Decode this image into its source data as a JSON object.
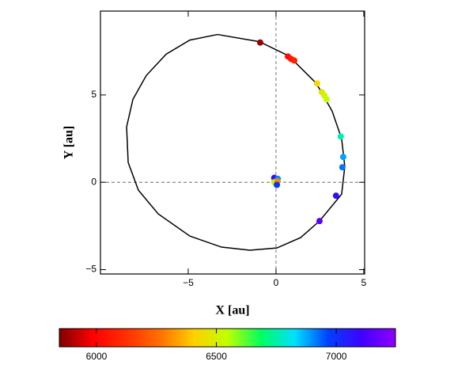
{
  "chart_data": {
    "type": "orbit",
    "x_label": "X [au]",
    "y_label": "Y [au]",
    "xlim": [
      -10.0,
      5.05
    ],
    "ylim": [
      -5.25,
      9.8
    ],
    "xticks": [
      {
        "value": -5,
        "label": "−5"
      },
      0,
      5
    ],
    "yticks": [
      {
        "value": -5,
        "label": "−5"
      },
      0,
      5
    ],
    "zero_lines": true,
    "orbit": {
      "color": "#000000",
      "x": [
        -3.33,
        -0.95,
        0.72,
        2.3,
        3.2,
        3.74,
        3.92,
        3.74,
        2.48,
        1.4,
        0.05,
        -1.49,
        -3.11,
        -4.91,
        -6.71,
        -7.84,
        -8.42,
        -8.51,
        -8.15,
        -7.39,
        -6.26,
        -4.91,
        -3.33
      ],
      "y": [
        8.46,
        8.05,
        7.24,
        5.66,
        4.07,
        2.49,
        0.9,
        -0.68,
        -2.22,
        -3.17,
        -3.76,
        -3.89,
        -3.71,
        -3.08,
        -1.81,
        -0.45,
        1.13,
        3.17,
        4.75,
        6.11,
        7.33,
        8.14,
        8.46
      ]
    },
    "points": {
      "x": [
        -0.9,
        0.68,
        0.86,
        1.04,
        2.34,
        2.61,
        2.75,
        2.88,
        3.69,
        3.83,
        3.78,
        3.42,
        2.48,
        -0.1,
        0.1,
        0.05,
        -0.1,
        0.08,
        0.05
      ],
      "y": [
        8.0,
        7.2,
        7.06,
        6.97,
        5.66,
        5.16,
        4.98,
        4.75,
        2.62,
        1.45,
        0.86,
        -0.77,
        -2.22,
        0.25,
        0.2,
        -0.1,
        0.0,
        0.05,
        -0.15
      ],
      "c": [
        5870,
        6030,
        6050,
        6080,
        6420,
        6470,
        6520,
        6540,
        6760,
        6880,
        6920,
        7080,
        7150,
        7100,
        6900,
        6500,
        6550,
        6300,
        7000
      ]
    },
    "clim": [
      5845,
      7247
    ],
    "cticks": [
      6000,
      6500,
      7000
    ],
    "colormap": [
      "#7f0000",
      "#ff0000",
      "#ff3000",
      "#ff7000",
      "#ffd000",
      "#c0ff00",
      "#00ff60",
      "#00e0ff",
      "#0040ff",
      "#4000ff",
      "#9000ff"
    ]
  }
}
